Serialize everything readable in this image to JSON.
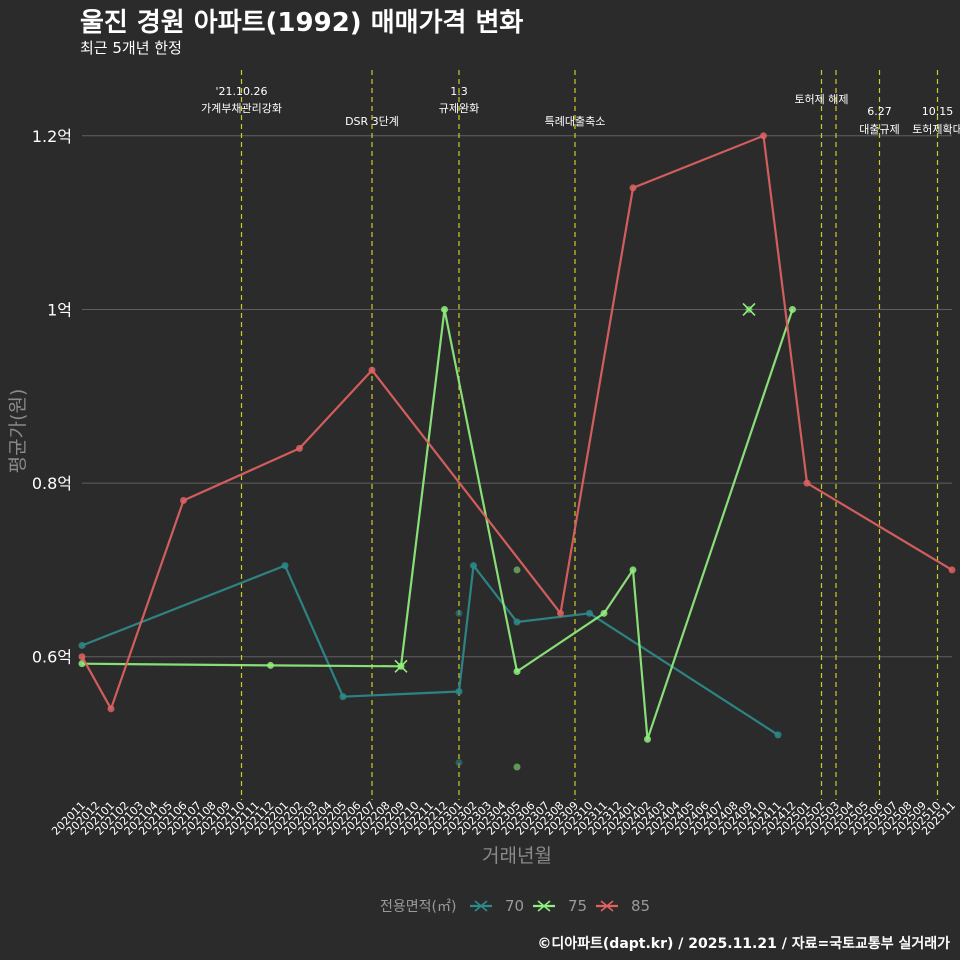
{
  "title": "울진 경원 아파트(1992) 매매가격 변화",
  "subtitle": "최근 5개년 한정",
  "caption": "©디아파트(dapt.kr) / 2025.11.21 / 자료=국토교통부 실거래가",
  "chart_data": {
    "type": "line",
    "xlabel": "거래년월",
    "ylabel": "평균가(원)",
    "x_categories": [
      "202011",
      "202012",
      "202101",
      "202102",
      "202103",
      "202104",
      "202105",
      "202106",
      "202107",
      "202108",
      "202109",
      "202110",
      "202111",
      "202112",
      "202201",
      "202202",
      "202203",
      "202204",
      "202205",
      "202206",
      "202207",
      "202208",
      "202209",
      "202210",
      "202211",
      "202212",
      "202301",
      "202302",
      "202303",
      "202304",
      "202305",
      "202306",
      "202307",
      "202308",
      "202309",
      "202310",
      "202311",
      "202312",
      "202401",
      "202402",
      "202403",
      "202404",
      "202405",
      "202406",
      "202407",
      "202408",
      "202409",
      "202410",
      "202411",
      "202412",
      "202501",
      "202502",
      "202503",
      "202504",
      "202505",
      "202506",
      "202507",
      "202508",
      "202509",
      "202510",
      "202511"
    ],
    "y_ticks": [
      {
        "value": 0.6,
        "label": "0.6억"
      },
      {
        "value": 0.8,
        "label": "0.8억"
      },
      {
        "value": 1.0,
        "label": "1억"
      },
      {
        "value": 1.2,
        "label": "1.2억"
      }
    ],
    "ylim": [
      0.435,
      1.285
    ],
    "legend_title": "전용면적(㎡)",
    "legend_position": "bottom",
    "series": [
      {
        "name": "70",
        "color": "#2e8b8b",
        "points": [
          [
            "202011",
            0.613
          ],
          [
            "202201",
            0.705
          ],
          [
            "202205",
            0.554
          ],
          [
            "202301",
            0.56
          ],
          [
            "202302",
            0.705
          ],
          [
            "202305",
            0.64
          ],
          [
            "202310",
            0.65
          ],
          [
            "202411",
            0.51
          ]
        ],
        "scatter": [
          [
            "202301",
            0.65
          ],
          [
            "202301",
            0.478
          ]
        ]
      },
      {
        "name": "75",
        "color": "#90ee7e",
        "points": [
          [
            "202011",
            0.592
          ],
          [
            "202112",
            0.59
          ],
          [
            "202209",
            0.589
          ],
          [
            "202212",
            1.0
          ],
          [
            "202305",
            0.583
          ],
          [
            "202311",
            0.65
          ],
          [
            "202401",
            0.7
          ],
          [
            "202402",
            0.505
          ],
          [
            "202412",
            1.0
          ]
        ],
        "scatter": [
          [
            "202305",
            0.7
          ],
          [
            "202305",
            0.473
          ],
          [
            "202409",
            1.0
          ]
        ]
      },
      {
        "name": "85",
        "color": "#e06262",
        "points": [
          [
            "202011",
            0.6
          ],
          [
            "202101",
            0.54
          ],
          [
            "202106",
            0.78
          ],
          [
            "202202",
            0.84
          ],
          [
            "202207",
            0.93
          ],
          [
            "202308",
            0.65
          ],
          [
            "202401",
            1.14
          ],
          [
            "202410",
            1.2
          ],
          [
            "202501",
            0.8
          ],
          [
            "202511",
            0.7
          ]
        ],
        "scatter": []
      }
    ],
    "events": [
      {
        "x": "202110",
        "line1": "'21.10.26",
        "line2": "가계부채관리강화",
        "row": "high"
      },
      {
        "x": "202207",
        "line1": "DSR 3단계",
        "line2": "",
        "row": "low"
      },
      {
        "x": "202301",
        "line1": "1.3",
        "line2": "규제완화",
        "row": "high"
      },
      {
        "x": "202309",
        "line1": "특례대출축소",
        "line2": "",
        "row": "low"
      },
      {
        "x": "202502",
        "line1": "토허제 해제",
        "line2": "",
        "row": "mid"
      },
      {
        "x": "202503",
        "line1": "",
        "line2": "",
        "row": "none"
      },
      {
        "x": "202506",
        "line1": "6.27",
        "line2": "대출규제",
        "row": "right"
      },
      {
        "x": "202510",
        "line1": "10.15",
        "line2": "토허제확대",
        "row": "right"
      }
    ]
  }
}
